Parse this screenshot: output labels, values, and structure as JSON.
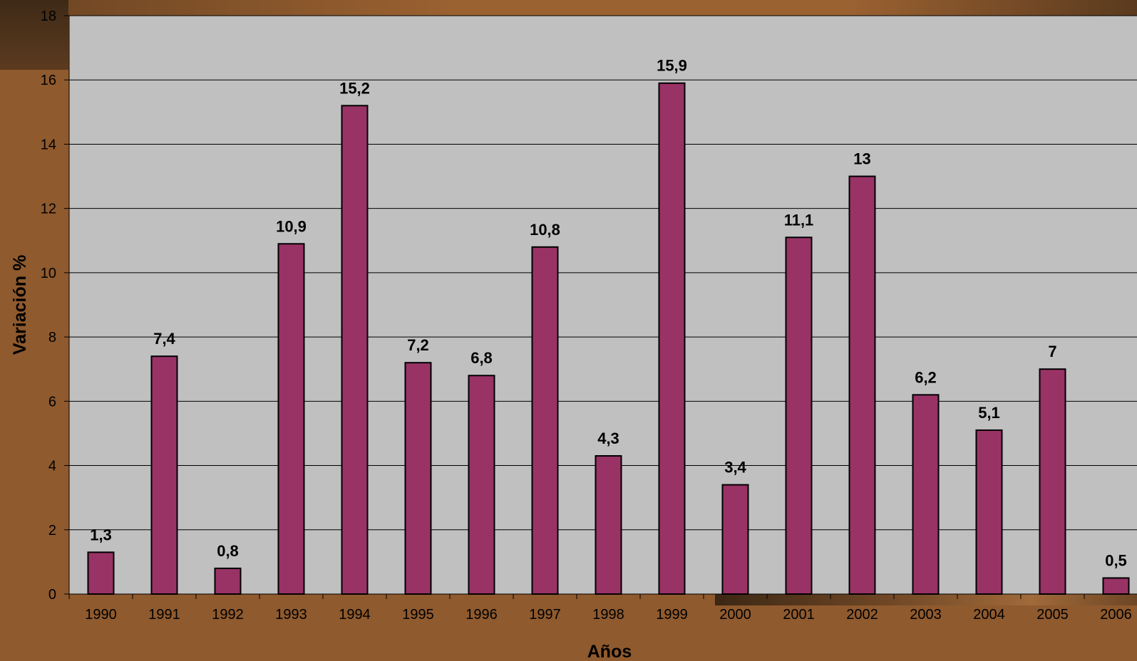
{
  "chart_data": {
    "type": "bar",
    "title": "",
    "xlabel": "Años",
    "ylabel": "Variación %",
    "categories": [
      "1990",
      "1991",
      "1992",
      "1993",
      "1994",
      "1995",
      "1996",
      "1997",
      "1998",
      "1999",
      "2000",
      "2001",
      "2002",
      "2003",
      "2004",
      "2005",
      "2006"
    ],
    "values": [
      1.3,
      7.4,
      0.8,
      10.9,
      15.2,
      7.2,
      6.8,
      10.8,
      4.3,
      15.9,
      3.4,
      11.1,
      13,
      6.2,
      5.1,
      7,
      0.5
    ],
    "data_labels": [
      "1,3",
      "7,4",
      "0,8",
      "10,9",
      "15,2",
      "7,2",
      "6,8",
      "10,8",
      "4,3",
      "15,9",
      "3,4",
      "11,1",
      "13",
      "6,2",
      "5,1",
      "7",
      "0,5"
    ],
    "ylim": [
      0,
      18
    ],
    "yticks": [
      "0",
      "2",
      "4",
      "6",
      "8",
      "10",
      "12",
      "14",
      "16",
      "18"
    ],
    "grid": true,
    "legend": "none",
    "colors": {
      "bar": "#993366",
      "bar_outline": "#000000",
      "plot_background": "#c0c0c0",
      "gridline": "#000000"
    }
  }
}
